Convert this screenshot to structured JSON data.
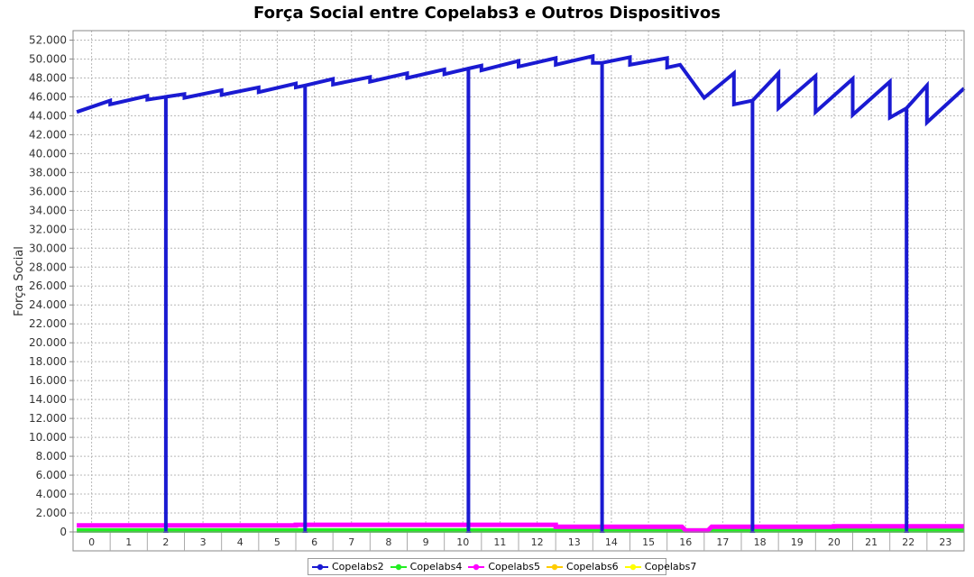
{
  "chart_data": {
    "type": "line",
    "title": "Força Social entre Copelabs3 e Outros Dispositivos",
    "xlabel": "",
    "ylabel": "Força Social",
    "x_categories": [
      "0",
      "1",
      "2",
      "3",
      "4",
      "5",
      "6",
      "7",
      "8",
      "9",
      "10",
      "11",
      "12",
      "13",
      "14",
      "15",
      "16",
      "17",
      "18",
      "19",
      "20",
      "21",
      "22",
      "23"
    ],
    "ylim": [
      0,
      53000
    ],
    "y_ticks": [
      0,
      2000,
      4000,
      6000,
      8000,
      10000,
      12000,
      14000,
      16000,
      18000,
      20000,
      22000,
      24000,
      26000,
      28000,
      30000,
      32000,
      34000,
      36000,
      38000,
      40000,
      42000,
      44000,
      46000,
      48000,
      50000,
      52000
    ],
    "y_tick_labels": [
      "0",
      "2.000",
      "4.000",
      "6.000",
      "8.000",
      "10.000",
      "12.000",
      "14.000",
      "16.000",
      "18.000",
      "20.000",
      "22.000",
      "24.000",
      "26.000",
      "28.000",
      "30.000",
      "32.000",
      "34.000",
      "36.000",
      "38.000",
      "40.000",
      "42.000",
      "44.000",
      "46.000",
      "48.000",
      "50.000",
      "52.000"
    ],
    "grid": true,
    "legend_position": "bottom",
    "series": [
      {
        "name": "Copelabs2",
        "color": "#1a1ad2",
        "points": [
          [
            -0.4,
            44400
          ],
          [
            0.5,
            45600
          ],
          [
            0.5,
            45200
          ],
          [
            1.5,
            46100
          ],
          [
            1.5,
            45700
          ],
          [
            2.0,
            46000
          ],
          [
            2.0,
            200
          ],
          [
            2.0,
            46000
          ],
          [
            2.5,
            46300
          ],
          [
            2.5,
            45900
          ],
          [
            3.5,
            46700
          ],
          [
            3.5,
            46200
          ],
          [
            4.5,
            47000
          ],
          [
            4.5,
            46500
          ],
          [
            5.5,
            47400
          ],
          [
            5.5,
            47000
          ],
          [
            5.75,
            47200
          ],
          [
            5.75,
            200
          ],
          [
            5.75,
            47200
          ],
          [
            6.5,
            47900
          ],
          [
            6.5,
            47300
          ],
          [
            7.5,
            48100
          ],
          [
            7.5,
            47600
          ],
          [
            8.5,
            48500
          ],
          [
            8.5,
            48000
          ],
          [
            9.5,
            48900
          ],
          [
            9.5,
            48400
          ],
          [
            10.15,
            49000
          ],
          [
            10.15,
            200
          ],
          [
            10.15,
            49000
          ],
          [
            10.5,
            49300
          ],
          [
            10.5,
            48800
          ],
          [
            11.5,
            49800
          ],
          [
            11.5,
            49200
          ],
          [
            12.5,
            50100
          ],
          [
            12.5,
            49400
          ],
          [
            13.5,
            50300
          ],
          [
            13.5,
            49600
          ],
          [
            13.75,
            49600
          ],
          [
            13.75,
            200
          ],
          [
            13.75,
            49600
          ],
          [
            14.5,
            50200
          ],
          [
            14.5,
            49400
          ],
          [
            15.5,
            50100
          ],
          [
            15.5,
            49100
          ],
          [
            15.85,
            49400
          ],
          [
            16.5,
            45900
          ],
          [
            17.3,
            48500
          ],
          [
            17.3,
            45200
          ],
          [
            17.8,
            45600
          ],
          [
            17.8,
            200
          ],
          [
            17.8,
            45600
          ],
          [
            18.5,
            48500
          ],
          [
            18.5,
            44800
          ],
          [
            19.5,
            48200
          ],
          [
            19.5,
            44400
          ],
          [
            20.5,
            47900
          ],
          [
            20.5,
            44100
          ],
          [
            21.5,
            47600
          ],
          [
            21.5,
            43800
          ],
          [
            21.95,
            44800
          ],
          [
            21.95,
            200
          ],
          [
            21.95,
            44800
          ],
          [
            22.5,
            47200
          ],
          [
            22.5,
            43300
          ],
          [
            23.5,
            46900
          ]
        ]
      },
      {
        "name": "Copelabs4",
        "color": "#22ee22",
        "points": [
          [
            -0.4,
            150
          ],
          [
            23.5,
            150
          ]
        ]
      },
      {
        "name": "Copelabs5",
        "color": "#ff00ff",
        "points": [
          [
            -0.4,
            700
          ],
          [
            5.5,
            700
          ],
          [
            5.5,
            750
          ],
          [
            12.5,
            750
          ],
          [
            12.5,
            550
          ],
          [
            15.9,
            550
          ],
          [
            16.0,
            150
          ],
          [
            16.6,
            150
          ],
          [
            16.7,
            550
          ],
          [
            20.0,
            550
          ],
          [
            20.0,
            600
          ],
          [
            23.5,
            600
          ]
        ]
      },
      {
        "name": "Copelabs6",
        "color": "#ffcc00",
        "points": []
      },
      {
        "name": "Copelabs7",
        "color": "#ffff00",
        "points": []
      }
    ]
  }
}
